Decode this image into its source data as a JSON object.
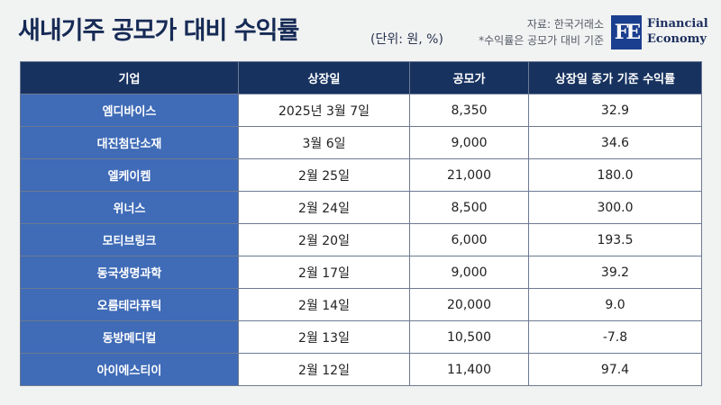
{
  "header": {
    "title": "새내기주 공모가 대비 수익률",
    "unit": "(단위: 원, %)",
    "source": "자료: 한국거래소",
    "note": "*수익률은 공모가 대비 기준",
    "logo": {
      "mark": "FE",
      "line1": "Financial",
      "line2": "Economy"
    }
  },
  "colors": {
    "title": "#162a55",
    "header_bg": "#17325f",
    "company_bg": "#3f6bb7",
    "logo_bg": "#1b3f8f"
  },
  "chart_data": {
    "type": "table",
    "columns": [
      "기업",
      "상장일",
      "공모가",
      "상장일 종가 기준 수익률"
    ],
    "rows": [
      [
        "엠디바이스",
        "2025년 3월 7일",
        "8,350",
        "32.9"
      ],
      [
        "대진첨단소재",
        "3월 6일",
        "9,000",
        "34.6"
      ],
      [
        "엘케이켐",
        "2월 25일",
        "21,000",
        "180.0"
      ],
      [
        "위너스",
        "2월 24일",
        "8,500",
        "300.0"
      ],
      [
        "모티브링크",
        "2월 20일",
        "6,000",
        "193.5"
      ],
      [
        "동국생명과학",
        "2월 17일",
        "9,000",
        "39.2"
      ],
      [
        "오름테라퓨틱",
        "2월 14일",
        "20,000",
        "9.0"
      ],
      [
        "동방메디컬",
        "2월 13일",
        "10,500",
        "-7.8"
      ],
      [
        "아이에스티이",
        "2월 12일",
        "11,400",
        "97.4"
      ]
    ]
  }
}
